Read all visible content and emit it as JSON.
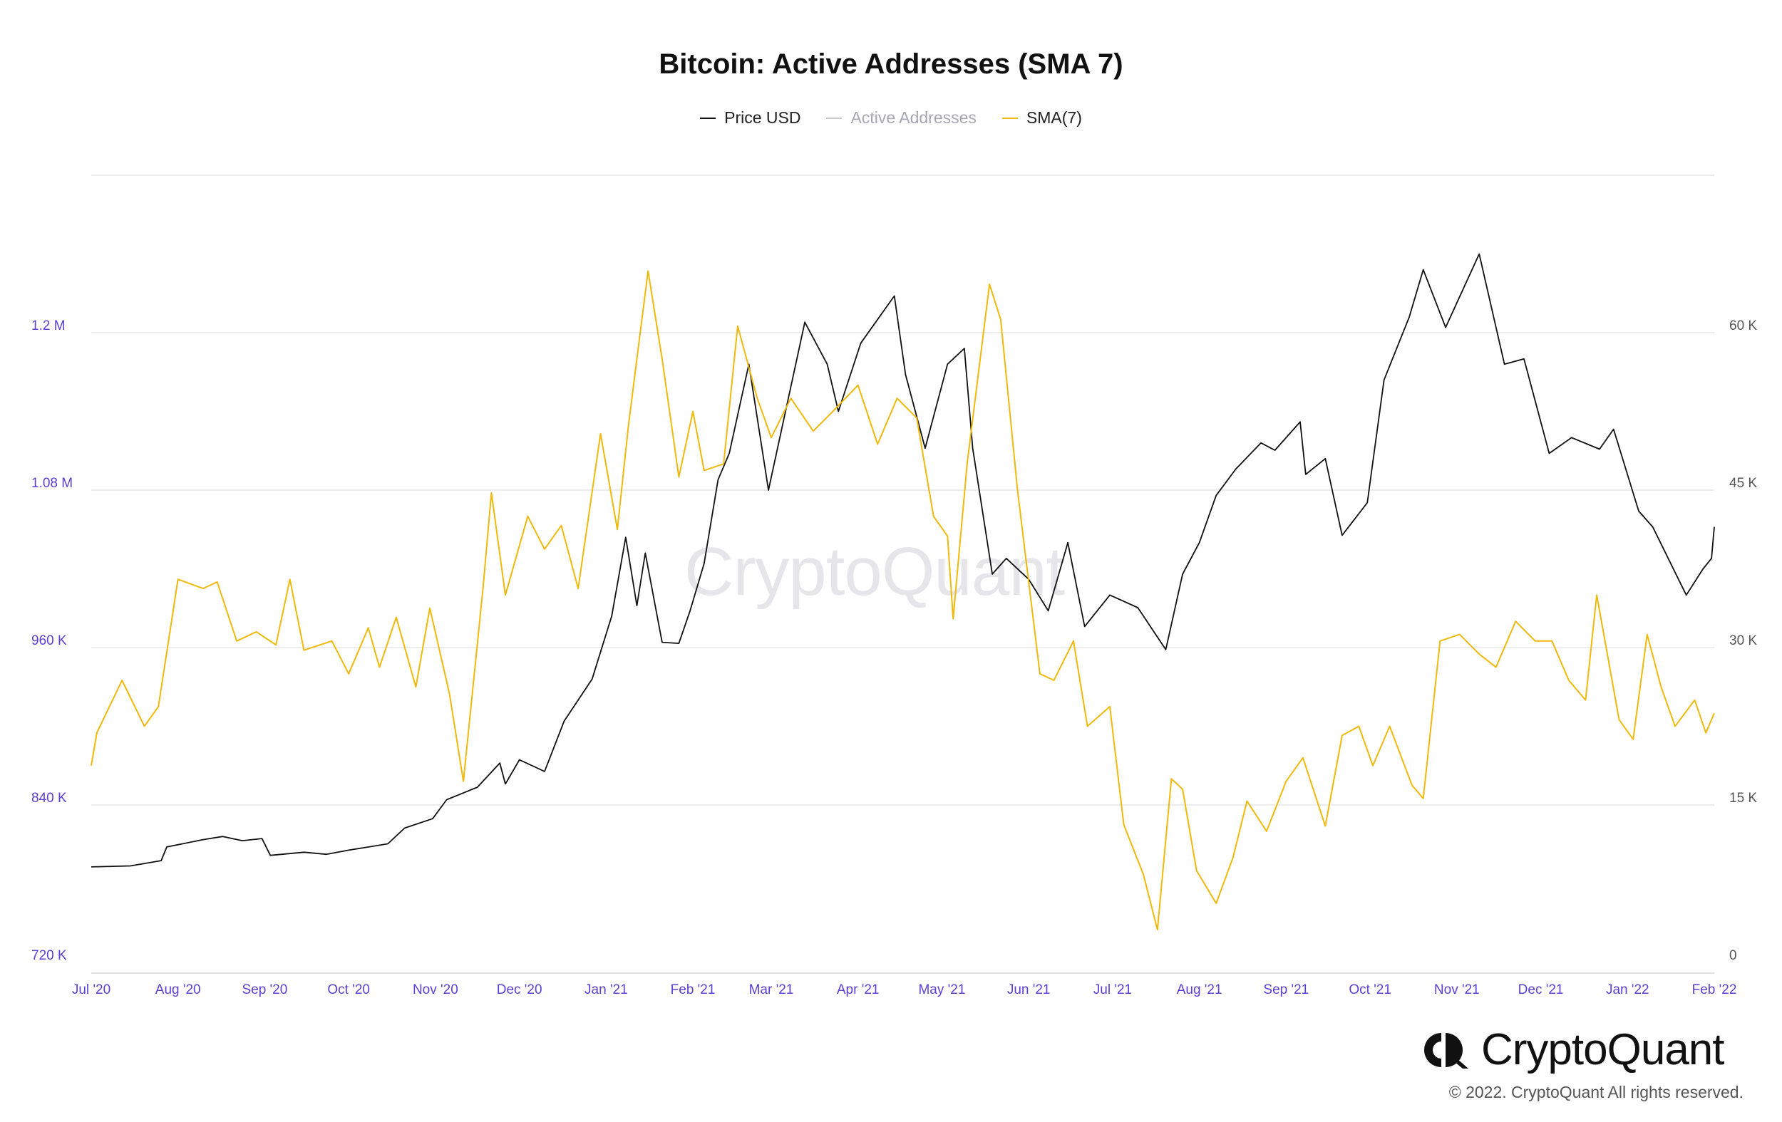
{
  "colors": {
    "price": "#111111",
    "active": "#c7c7cf",
    "sma": "#f0b90b",
    "left_axis": "#5b3fd6",
    "right_axis": "#555555",
    "grid": "#e6e6e6"
  },
  "watermark": "CryptoQuant",
  "brand": {
    "name": "CryptoQuant",
    "copyright": "© 2022. CryptoQuant All rights reserved.",
    "logo_icon": "cryptoquant-logo-icon"
  },
  "chart_data": {
    "type": "line",
    "title": "Bitcoin: Active Addresses (SMA 7)",
    "legend": [
      {
        "label": "Price USD",
        "color": "#111111",
        "style": "normal"
      },
      {
        "label": "Active Addresses",
        "color": "#c7c7cf",
        "style": "disabled"
      },
      {
        "label": "SMA(7)",
        "color": "#f0b90b",
        "style": "normal"
      }
    ],
    "legend_position": "top-center",
    "grid": true,
    "x_ticks": [
      "Jul '20",
      "Aug '20",
      "Sep '20",
      "Oct '20",
      "Nov '20",
      "Dec '20",
      "Jan '21",
      "Feb '21",
      "Mar '21",
      "Apr '21",
      "May '21",
      "Jun '21",
      "Jul '21",
      "Aug '21",
      "Sep '21",
      "Oct '21",
      "Nov '21",
      "Dec '21",
      "Jan '22",
      "Feb '22"
    ],
    "x_range": [
      "2020-07-01",
      "2022-02-01"
    ],
    "y_left": {
      "ticks": [
        "720 K",
        "840 K",
        "960 K",
        "1.08 M",
        "1.2 M"
      ],
      "min": 720000,
      "max": 1200000,
      "top": 1320000
    },
    "y_right": {
      "ticks": [
        "0",
        "15 K",
        "30 K",
        "45 K",
        "60 K"
      ],
      "min": 0,
      "max": 60000,
      "top": 75000
    },
    "series": [
      {
        "name": "Price USD",
        "axis": "right",
        "points": [
          [
            "2020-07-01",
            9100
          ],
          [
            "2020-07-15",
            9200
          ],
          [
            "2020-07-26",
            9700
          ],
          [
            "2020-07-28",
            11000
          ],
          [
            "2020-08-10",
            11700
          ],
          [
            "2020-08-17",
            12000
          ],
          [
            "2020-08-24",
            11600
          ],
          [
            "2020-08-31",
            11800
          ],
          [
            "2020-09-03",
            10200
          ],
          [
            "2020-09-15",
            10500
          ],
          [
            "2020-09-23",
            10300
          ],
          [
            "2020-10-01",
            10700
          ],
          [
            "2020-10-15",
            11300
          ],
          [
            "2020-10-21",
            12800
          ],
          [
            "2020-10-31",
            13700
          ],
          [
            "2020-11-05",
            15500
          ],
          [
            "2020-11-16",
            16700
          ],
          [
            "2020-11-24",
            19000
          ],
          [
            "2020-11-26",
            17000
          ],
          [
            "2020-12-01",
            19300
          ],
          [
            "2020-12-10",
            18200
          ],
          [
            "2020-12-17",
            23000
          ],
          [
            "2020-12-27",
            27000
          ],
          [
            "2021-01-03",
            33000
          ],
          [
            "2021-01-08",
            40500
          ],
          [
            "2021-01-12",
            34000
          ],
          [
            "2021-01-15",
            39000
          ],
          [
            "2021-01-21",
            30500
          ],
          [
            "2021-01-27",
            30400
          ],
          [
            "2021-01-31",
            33500
          ],
          [
            "2021-02-05",
            38000
          ],
          [
            "2021-02-10",
            46000
          ],
          [
            "2021-02-14",
            48500
          ],
          [
            "2021-02-21",
            57000
          ],
          [
            "2021-02-28",
            45000
          ],
          [
            "2021-03-13",
            61000
          ],
          [
            "2021-03-21",
            57000
          ],
          [
            "2021-03-25",
            52500
          ],
          [
            "2021-04-02",
            59000
          ],
          [
            "2021-04-14",
            63500
          ],
          [
            "2021-04-18",
            56000
          ],
          [
            "2021-04-25",
            49000
          ],
          [
            "2021-05-03",
            57000
          ],
          [
            "2021-05-09",
            58500
          ],
          [
            "2021-05-12",
            49000
          ],
          [
            "2021-05-19",
            37000
          ],
          [
            "2021-05-24",
            38500
          ],
          [
            "2021-06-01",
            36500
          ],
          [
            "2021-06-08",
            33500
          ],
          [
            "2021-06-15",
            40000
          ],
          [
            "2021-06-21",
            32000
          ],
          [
            "2021-06-30",
            35000
          ],
          [
            "2021-07-10",
            33800
          ],
          [
            "2021-07-20",
            29800
          ],
          [
            "2021-07-26",
            37000
          ],
          [
            "2021-08-01",
            40000
          ],
          [
            "2021-08-07",
            44500
          ],
          [
            "2021-08-14",
            47000
          ],
          [
            "2021-08-23",
            49500
          ],
          [
            "2021-08-28",
            48800
          ],
          [
            "2021-09-06",
            51500
          ],
          [
            "2021-09-08",
            46500
          ],
          [
            "2021-09-15",
            48000
          ],
          [
            "2021-09-21",
            40700
          ],
          [
            "2021-09-30",
            43800
          ],
          [
            "2021-10-06",
            55500
          ],
          [
            "2021-10-15",
            61500
          ],
          [
            "2021-10-20",
            66000
          ],
          [
            "2021-10-28",
            60500
          ],
          [
            "2021-11-09",
            67500
          ],
          [
            "2021-11-18",
            57000
          ],
          [
            "2021-11-25",
            57500
          ],
          [
            "2021-12-04",
            48500
          ],
          [
            "2021-12-12",
            50000
          ],
          [
            "2021-12-22",
            48900
          ],
          [
            "2021-12-27",
            50800
          ],
          [
            "2022-01-05",
            43000
          ],
          [
            "2022-01-10",
            41500
          ],
          [
            "2022-01-22",
            35000
          ],
          [
            "2022-01-28",
            37500
          ],
          [
            "2022-01-31",
            38500
          ],
          [
            "2022-02-01",
            41500
          ]
        ]
      },
      {
        "name": "SMA(7)",
        "axis": "left",
        "points": [
          [
            "2020-07-01",
            870000
          ],
          [
            "2020-07-03",
            895000
          ],
          [
            "2020-07-12",
            935000
          ],
          [
            "2020-07-20",
            900000
          ],
          [
            "2020-07-25",
            915000
          ],
          [
            "2020-08-01",
            1012000
          ],
          [
            "2020-08-10",
            1005000
          ],
          [
            "2020-08-15",
            1010000
          ],
          [
            "2020-08-22",
            965000
          ],
          [
            "2020-08-29",
            972000
          ],
          [
            "2020-09-05",
            962000
          ],
          [
            "2020-09-10",
            1012000
          ],
          [
            "2020-09-15",
            958000
          ],
          [
            "2020-09-25",
            965000
          ],
          [
            "2020-10-01",
            940000
          ],
          [
            "2020-10-08",
            975000
          ],
          [
            "2020-10-12",
            945000
          ],
          [
            "2020-10-18",
            983000
          ],
          [
            "2020-10-25",
            930000
          ],
          [
            "2020-10-30",
            990000
          ],
          [
            "2020-11-06",
            925000
          ],
          [
            "2020-11-11",
            858000
          ],
          [
            "2020-11-18",
            1005000
          ],
          [
            "2020-11-21",
            1078000
          ],
          [
            "2020-11-26",
            1000000
          ],
          [
            "2020-12-04",
            1060000
          ],
          [
            "2020-12-10",
            1035000
          ],
          [
            "2020-12-16",
            1053000
          ],
          [
            "2020-12-22",
            1005000
          ],
          [
            "2020-12-30",
            1123000
          ],
          [
            "2021-01-05",
            1050000
          ],
          [
            "2021-01-09",
            1130000
          ],
          [
            "2021-01-16",
            1247000
          ],
          [
            "2021-01-21",
            1180000
          ],
          [
            "2021-01-27",
            1090000
          ],
          [
            "2021-02-01",
            1140000
          ],
          [
            "2021-02-05",
            1095000
          ],
          [
            "2021-02-12",
            1100000
          ],
          [
            "2021-02-17",
            1205000
          ],
          [
            "2021-02-24",
            1150000
          ],
          [
            "2021-03-01",
            1120000
          ],
          [
            "2021-03-08",
            1150000
          ],
          [
            "2021-03-16",
            1125000
          ],
          [
            "2021-03-23",
            1140000
          ],
          [
            "2021-04-01",
            1160000
          ],
          [
            "2021-04-08",
            1115000
          ],
          [
            "2021-04-15",
            1150000
          ],
          [
            "2021-04-22",
            1135000
          ],
          [
            "2021-04-28",
            1060000
          ],
          [
            "2021-05-03",
            1045000
          ],
          [
            "2021-05-05",
            982000
          ],
          [
            "2021-05-10",
            1100000
          ],
          [
            "2021-05-18",
            1237000
          ],
          [
            "2021-05-22",
            1210000
          ],
          [
            "2021-05-28",
            1080000
          ],
          [
            "2021-06-05",
            940000
          ],
          [
            "2021-06-10",
            935000
          ],
          [
            "2021-06-17",
            965000
          ],
          [
            "2021-06-22",
            900000
          ],
          [
            "2021-06-30",
            915000
          ],
          [
            "2021-07-05",
            825000
          ],
          [
            "2021-07-12",
            787000
          ],
          [
            "2021-07-17",
            745000
          ],
          [
            "2021-07-22",
            860000
          ],
          [
            "2021-07-26",
            852000
          ],
          [
            "2021-07-31",
            790000
          ],
          [
            "2021-08-07",
            765000
          ],
          [
            "2021-08-13",
            800000
          ],
          [
            "2021-08-18",
            843000
          ],
          [
            "2021-08-25",
            820000
          ],
          [
            "2021-09-01",
            858000
          ],
          [
            "2021-09-07",
            876000
          ],
          [
            "2021-09-15",
            824000
          ],
          [
            "2021-09-21",
            893000
          ],
          [
            "2021-09-27",
            900000
          ],
          [
            "2021-10-02",
            870000
          ],
          [
            "2021-10-08",
            900000
          ],
          [
            "2021-10-16",
            855000
          ],
          [
            "2021-10-20",
            845000
          ],
          [
            "2021-10-26",
            965000
          ],
          [
            "2021-11-02",
            970000
          ],
          [
            "2021-11-09",
            955000
          ],
          [
            "2021-11-15",
            945000
          ],
          [
            "2021-11-22",
            980000
          ],
          [
            "2021-11-29",
            965000
          ],
          [
            "2021-12-05",
            965000
          ],
          [
            "2021-12-11",
            935000
          ],
          [
            "2021-12-17",
            920000
          ],
          [
            "2021-12-21",
            1000000
          ],
          [
            "2021-12-29",
            905000
          ],
          [
            "2022-01-03",
            890000
          ],
          [
            "2022-01-08",
            970000
          ],
          [
            "2022-01-13",
            930000
          ],
          [
            "2022-01-18",
            900000
          ],
          [
            "2022-01-25",
            920000
          ],
          [
            "2022-01-29",
            895000
          ],
          [
            "2022-02-01",
            910000
          ]
        ]
      }
    ]
  }
}
